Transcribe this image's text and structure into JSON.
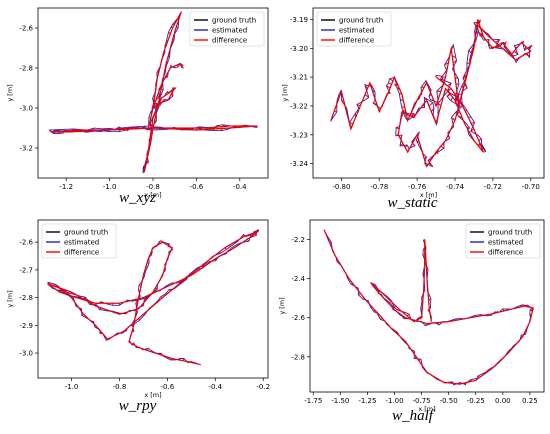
{
  "colors": {
    "ground_truth": "#000000",
    "estimated": "#2020c8",
    "difference": "#ff0000"
  },
  "chart_data": [
    {
      "type": "line",
      "caption": "w_xyz",
      "xlabel": "x [m]",
      "ylabel": "y [m]",
      "xlim": [
        -1.33,
        -0.27
      ],
      "ylim": [
        -3.35,
        -2.5
      ],
      "xticks": [
        "-1.2",
        "-1.0",
        "-0.8",
        "-0.6",
        "-0.4"
      ],
      "xtick_values": [
        -1.2,
        -1.0,
        -0.8,
        -0.6,
        -0.4
      ],
      "yticks": [
        "-2.6",
        "-2.8",
        "-3.0",
        "-3.2"
      ],
      "ytick_values": [
        -2.6,
        -2.8,
        -3.0,
        -3.2
      ],
      "legend": [
        "ground truth",
        "estimated",
        "difference"
      ],
      "legend_position": "top-right",
      "path": [
        [
          -1.27,
          -3.12
        ],
        [
          -1.15,
          -3.11
        ],
        [
          -1.0,
          -3.11
        ],
        [
          -0.9,
          -3.1
        ],
        [
          -0.82,
          -3.1
        ],
        [
          -0.7,
          -3.1
        ],
        [
          -0.55,
          -3.1
        ],
        [
          -0.45,
          -3.09
        ],
        [
          -0.32,
          -3.09
        ],
        [
          -0.45,
          -3.1
        ],
        [
          -0.6,
          -3.11
        ],
        [
          -0.8,
          -3.1
        ],
        [
          -1.0,
          -3.11
        ],
        [
          -1.2,
          -3.12
        ],
        [
          -1.27,
          -3.12
        ],
        [
          -0.82,
          -3.1
        ],
        [
          -0.8,
          -3.0
        ],
        [
          -0.78,
          -2.85
        ],
        [
          -0.75,
          -2.72
        ],
        [
          -0.71,
          -2.6
        ],
        [
          -0.67,
          -2.52
        ],
        [
          -0.7,
          -2.62
        ],
        [
          -0.74,
          -2.78
        ],
        [
          -0.77,
          -2.95
        ],
        [
          -0.8,
          -3.1
        ],
        [
          -0.82,
          -3.22
        ],
        [
          -0.84,
          -3.32
        ],
        [
          -0.82,
          -3.2
        ],
        [
          -0.8,
          -3.05
        ],
        [
          -0.76,
          -2.95
        ],
        [
          -0.72,
          -2.92
        ],
        [
          -0.7,
          -2.9
        ],
        [
          -0.73,
          -2.96
        ],
        [
          -0.78,
          -2.98
        ],
        [
          -0.8,
          -3.0
        ],
        [
          -0.76,
          -2.88
        ],
        [
          -0.72,
          -2.8
        ],
        [
          -0.68,
          -2.78
        ],
        [
          -0.66,
          -2.8
        ]
      ]
    },
    {
      "type": "line",
      "caption": "w_static",
      "xlabel": "x [m]",
      "ylabel": "y [m]",
      "xlim": [
        -0.815,
        -0.693
      ],
      "ylim": [
        -3.245,
        -3.186
      ],
      "xticks": [
        "-0.80",
        "-0.78",
        "-0.76",
        "-0.74",
        "-0.72",
        "-0.70"
      ],
      "xtick_values": [
        -0.8,
        -0.78,
        -0.76,
        -0.74,
        -0.72,
        -0.7
      ],
      "yticks": [
        "-3.19",
        "-3.20",
        "-3.21",
        "-3.22",
        "-3.23",
        "-3.24"
      ],
      "ytick_values": [
        -3.19,
        -3.2,
        -3.21,
        -3.22,
        -3.23,
        -3.24
      ],
      "legend": [
        "ground truth",
        "estimated",
        "difference"
      ],
      "legend_position": "top-left",
      "path": [
        [
          -0.805,
          -3.224
        ],
        [
          -0.8,
          -3.215
        ],
        [
          -0.795,
          -3.228
        ],
        [
          -0.79,
          -3.22
        ],
        [
          -0.785,
          -3.212
        ],
        [
          -0.78,
          -3.222
        ],
        [
          -0.775,
          -3.215
        ],
        [
          -0.772,
          -3.21
        ],
        [
          -0.768,
          -3.216
        ],
        [
          -0.765,
          -3.225
        ],
        [
          -0.76,
          -3.218
        ],
        [
          -0.755,
          -3.212
        ],
        [
          -0.75,
          -3.22
        ],
        [
          -0.745,
          -3.21
        ],
        [
          -0.742,
          -3.2
        ],
        [
          -0.74,
          -3.21
        ],
        [
          -0.738,
          -3.22
        ],
        [
          -0.735,
          -3.212
        ],
        [
          -0.73,
          -3.2
        ],
        [
          -0.728,
          -3.19
        ],
        [
          -0.725,
          -3.196
        ],
        [
          -0.72,
          -3.2
        ],
        [
          -0.715,
          -3.198
        ],
        [
          -0.71,
          -3.202
        ],
        [
          -0.705,
          -3.198
        ],
        [
          -0.7,
          -3.201
        ],
        [
          -0.708,
          -3.204
        ],
        [
          -0.715,
          -3.2
        ],
        [
          -0.722,
          -3.196
        ],
        [
          -0.728,
          -3.192
        ],
        [
          -0.732,
          -3.205
        ],
        [
          -0.736,
          -3.215
        ],
        [
          -0.74,
          -3.225
        ],
        [
          -0.745,
          -3.232
        ],
        [
          -0.75,
          -3.236
        ],
        [
          -0.755,
          -3.241
        ],
        [
          -0.76,
          -3.23
        ],
        [
          -0.765,
          -3.236
        ],
        [
          -0.77,
          -3.23
        ],
        [
          -0.768,
          -3.222
        ],
        [
          -0.762,
          -3.224
        ],
        [
          -0.755,
          -3.218
        ],
        [
          -0.75,
          -3.226
        ],
        [
          -0.745,
          -3.214
        ],
        [
          -0.74,
          -3.218
        ],
        [
          -0.735,
          -3.226
        ],
        [
          -0.73,
          -3.232
        ],
        [
          -0.725,
          -3.236
        ],
        [
          -0.73,
          -3.228
        ],
        [
          -0.736,
          -3.22
        ],
        [
          -0.742,
          -3.214
        ],
        [
          -0.75,
          -3.21
        ]
      ]
    },
    {
      "type": "line",
      "caption": "w_rpy",
      "xlabel": "x [m]",
      "ylabel": "y [m]",
      "xlim": [
        -1.14,
        -0.18
      ],
      "ylim": [
        -3.09,
        -2.52
      ],
      "xticks": [
        "-1.0",
        "-0.8",
        "-0.6",
        "-0.4",
        "-0.2"
      ],
      "xtick_values": [
        -1.0,
        -0.8,
        -0.6,
        -0.4,
        -0.2
      ],
      "yticks": [
        "-2.6",
        "-2.7",
        "-2.8",
        "-2.9",
        "-3.0"
      ],
      "ytick_values": [
        -2.6,
        -2.7,
        -2.8,
        -2.9,
        -3.0
      ],
      "legend": [
        "ground truth",
        "estimated",
        "difference"
      ],
      "legend_position": "top-left",
      "path": [
        [
          -1.1,
          -2.75
        ],
        [
          -1.05,
          -2.78
        ],
        [
          -0.98,
          -2.8
        ],
        [
          -0.9,
          -2.82
        ],
        [
          -0.8,
          -2.82
        ],
        [
          -0.7,
          -2.8
        ],
        [
          -0.6,
          -2.76
        ],
        [
          -0.5,
          -2.72
        ],
        [
          -0.4,
          -2.66
        ],
        [
          -0.32,
          -2.62
        ],
        [
          -0.25,
          -2.58
        ],
        [
          -0.22,
          -2.56
        ],
        [
          -0.28,
          -2.58
        ],
        [
          -0.36,
          -2.62
        ],
        [
          -0.45,
          -2.68
        ],
        [
          -0.55,
          -2.75
        ],
        [
          -0.62,
          -2.8
        ],
        [
          -0.7,
          -2.86
        ],
        [
          -0.78,
          -2.92
        ],
        [
          -0.85,
          -2.95
        ],
        [
          -0.9,
          -2.9
        ],
        [
          -0.95,
          -2.86
        ],
        [
          -1.0,
          -2.8
        ],
        [
          -1.06,
          -2.76
        ],
        [
          -1.1,
          -2.75
        ],
        [
          -1.0,
          -2.78
        ],
        [
          -0.9,
          -2.83
        ],
        [
          -0.8,
          -2.86
        ],
        [
          -0.72,
          -2.84
        ],
        [
          -0.66,
          -2.78
        ],
        [
          -0.62,
          -2.72
        ],
        [
          -0.6,
          -2.66
        ],
        [
          -0.58,
          -2.62
        ],
        [
          -0.62,
          -2.6
        ],
        [
          -0.66,
          -2.62
        ],
        [
          -0.68,
          -2.66
        ],
        [
          -0.7,
          -2.72
        ],
        [
          -0.72,
          -2.8
        ],
        [
          -0.74,
          -2.9
        ],
        [
          -0.76,
          -2.96
        ],
        [
          -0.72,
          -2.98
        ],
        [
          -0.65,
          -3.0
        ],
        [
          -0.58,
          -3.02
        ],
        [
          -0.52,
          -3.03
        ],
        [
          -0.47,
          -3.04
        ]
      ]
    },
    {
      "type": "line",
      "caption": "w_half",
      "xlabel": "x [m]",
      "ylabel": "y [m]",
      "xlim": [
        -1.78,
        0.38
      ],
      "ylim": [
        -2.98,
        -2.1
      ],
      "xticks": [
        "-1.75",
        "-1.50",
        "-1.25",
        "-1.00",
        "-0.75",
        "-0.50",
        "-0.25",
        "0.00",
        "0.25"
      ],
      "xtick_values": [
        -1.75,
        -1.5,
        -1.25,
        -1.0,
        -0.75,
        -0.5,
        -0.25,
        0.0,
        0.25
      ],
      "yticks": [
        "-2.2",
        "-2.4",
        "-2.6",
        "-2.8"
      ],
      "ytick_values": [
        -2.2,
        -2.4,
        -2.6,
        -2.8
      ],
      "legend": [
        "ground truth",
        "estimated",
        "difference"
      ],
      "legend_position": "top-right",
      "path": [
        [
          -1.65,
          -2.15
        ],
        [
          -1.55,
          -2.28
        ],
        [
          -1.42,
          -2.4
        ],
        [
          -1.28,
          -2.5
        ],
        [
          -1.15,
          -2.58
        ],
        [
          -1.02,
          -2.66
        ],
        [
          -0.9,
          -2.72
        ],
        [
          -0.8,
          -2.8
        ],
        [
          -0.7,
          -2.88
        ],
        [
          -0.55,
          -2.93
        ],
        [
          -0.4,
          -2.94
        ],
        [
          -0.25,
          -2.92
        ],
        [
          -0.1,
          -2.86
        ],
        [
          0.05,
          -2.78
        ],
        [
          0.18,
          -2.7
        ],
        [
          0.25,
          -2.62
        ],
        [
          0.28,
          -2.55
        ],
        [
          0.2,
          -2.54
        ],
        [
          0.05,
          -2.56
        ],
        [
          -0.1,
          -2.58
        ],
        [
          -0.3,
          -2.6
        ],
        [
          -0.5,
          -2.62
        ],
        [
          -0.7,
          -2.63
        ],
        [
          -0.9,
          -2.6
        ],
        [
          -1.0,
          -2.56
        ],
        [
          -1.1,
          -2.5
        ],
        [
          -1.18,
          -2.45
        ],
        [
          -1.22,
          -2.42
        ],
        [
          -1.1,
          -2.48
        ],
        [
          -0.95,
          -2.56
        ],
        [
          -0.82,
          -2.62
        ],
        [
          -0.75,
          -2.6
        ],
        [
          -0.73,
          -2.45
        ],
        [
          -0.72,
          -2.3
        ],
        [
          -0.72,
          -2.2
        ],
        [
          -0.7,
          -2.4
        ],
        [
          -0.68,
          -2.55
        ],
        [
          -0.66,
          -2.62
        ]
      ]
    }
  ]
}
